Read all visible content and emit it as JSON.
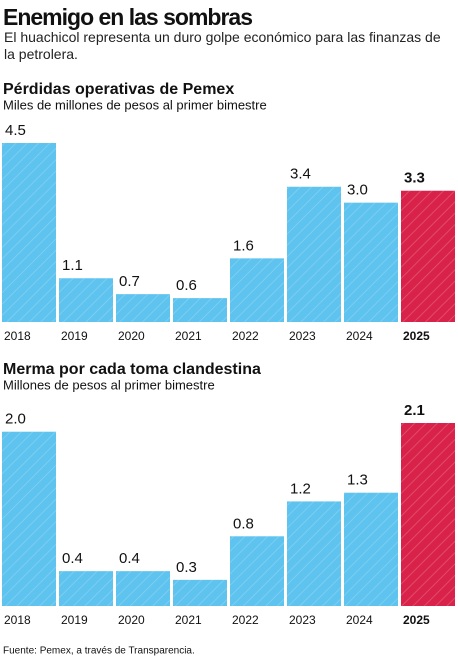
{
  "title": "Enemigo en las sombras",
  "subtitle": "El huachicol representa un duro golpe económico para las finanzas de la petrolera.",
  "source": "Fuente: Pemex, a través de Transparencia.",
  "chart_data": [
    {
      "type": "bar",
      "title": "Pérdidas operativas de Pemex",
      "subtitle": "Miles de millones de pesos al primer bimestre",
      "categories": [
        "2018",
        "2019",
        "2020",
        "2021",
        "2022",
        "2023",
        "2024",
        "2025"
      ],
      "values": [
        4.5,
        1.1,
        0.7,
        0.6,
        1.6,
        3.4,
        3.0,
        3.3
      ],
      "value_labels": [
        "4.5",
        "1.1",
        "0.7",
        "0.6",
        "1.6",
        "3.4",
        "3.0",
        "3.3"
      ],
      "colors": [
        "#5ec3ee",
        "#5ec3ee",
        "#5ec3ee",
        "#5ec3ee",
        "#5ec3ee",
        "#5ec3ee",
        "#5ec3ee",
        "#d9224a"
      ]
    },
    {
      "type": "bar",
      "title": "Merma por cada toma clandestina",
      "subtitle": "Millones de pesos al primer bimestre",
      "categories": [
        "2018",
        "2019",
        "2020",
        "2021",
        "2022",
        "2023",
        "2024",
        "2025"
      ],
      "values": [
        2.0,
        0.4,
        0.4,
        0.3,
        0.8,
        1.2,
        1.3,
        2.1
      ],
      "value_labels": [
        "2.0",
        "0.4",
        "0.4",
        "0.3",
        "0.8",
        "1.2",
        "1.3",
        "2.1"
      ],
      "colors": [
        "#5ec3ee",
        "#5ec3ee",
        "#5ec3ee",
        "#5ec3ee",
        "#5ec3ee",
        "#5ec3ee",
        "#5ec3ee",
        "#d9224a"
      ]
    }
  ]
}
